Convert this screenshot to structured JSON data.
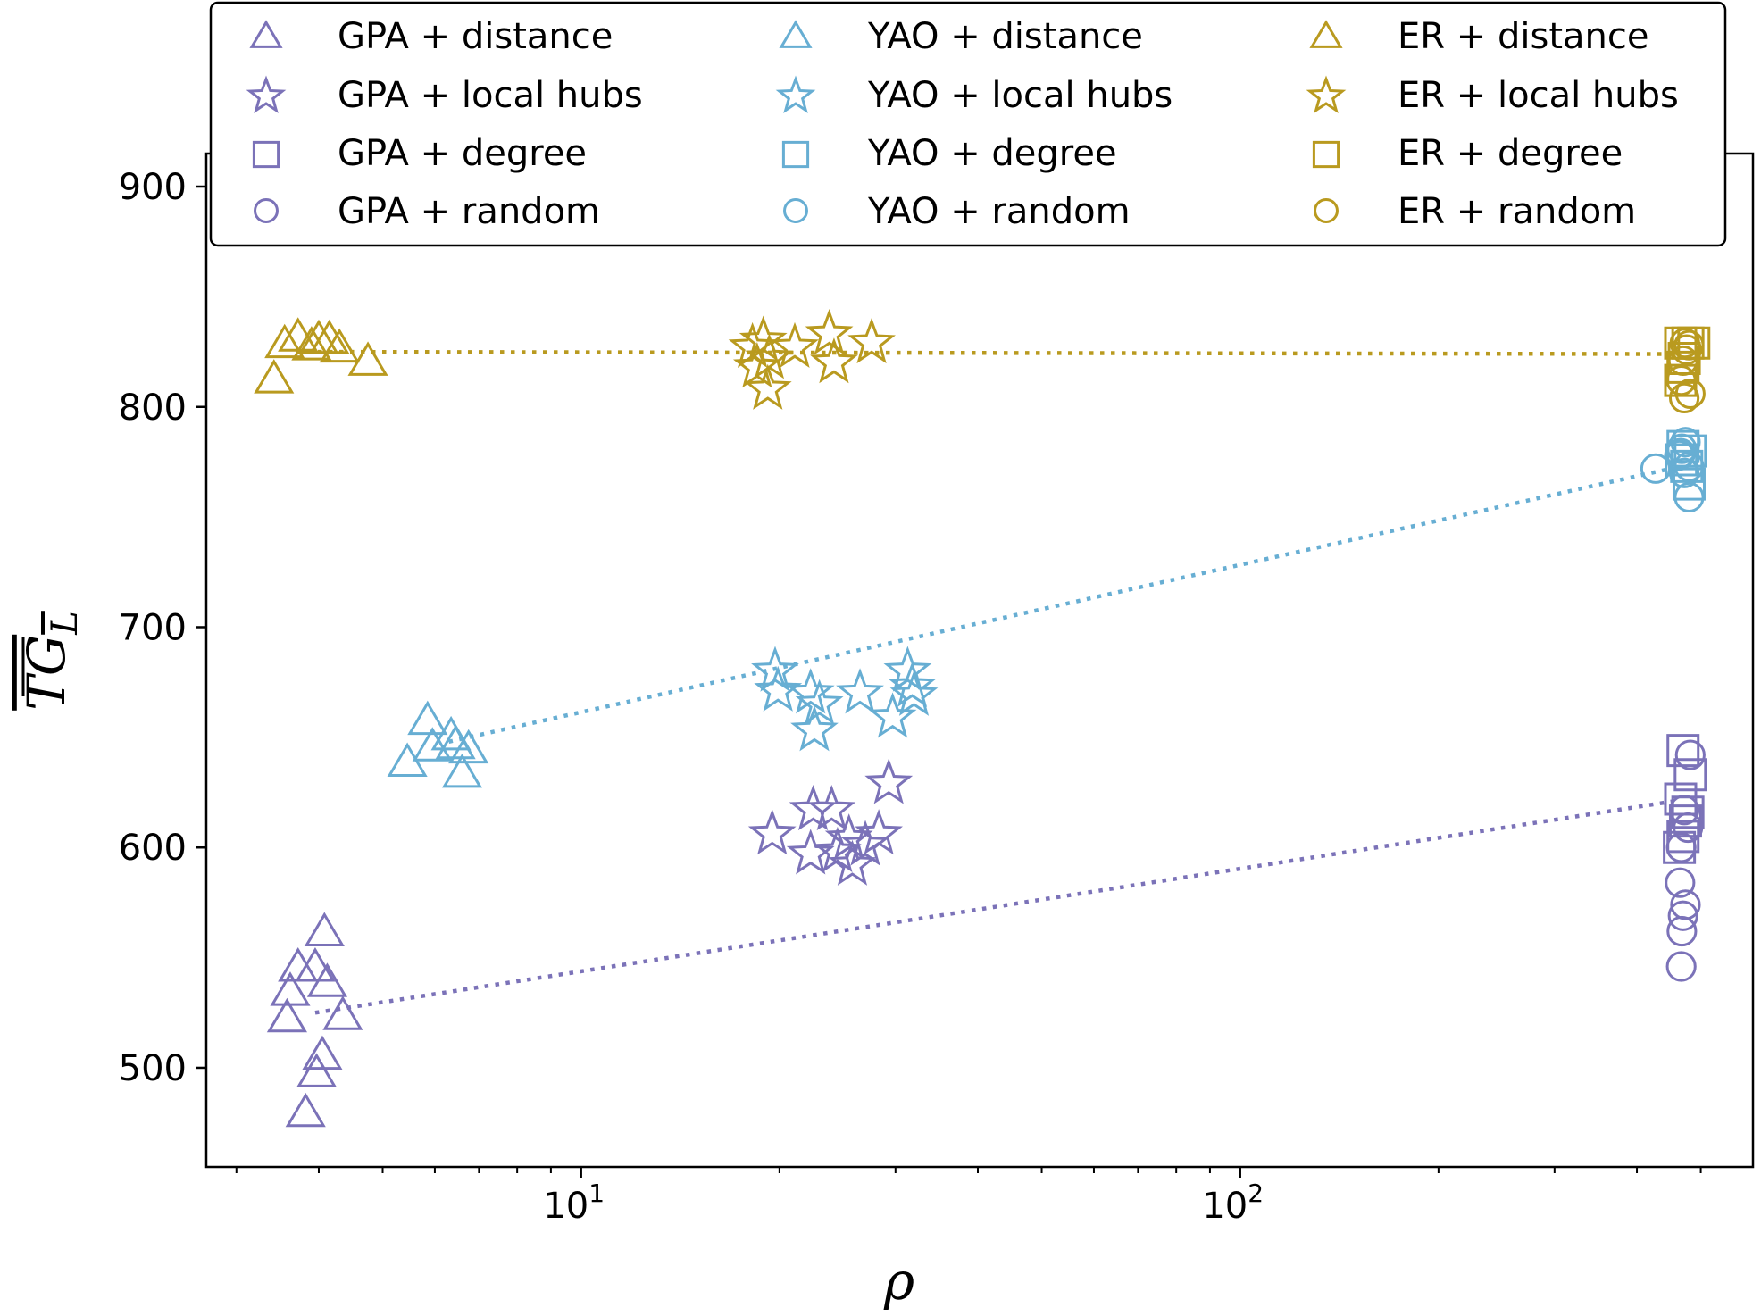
{
  "chart_data": {
    "type": "scatter",
    "title": "",
    "xlabel": "ρ",
    "ylabel": "TG",
    "ylabel_subscript": "L",
    "xscale": "log",
    "xlim": [
      2.7,
      600
    ],
    "ylim": [
      455,
      915
    ],
    "x_ticks": [
      {
        "value": 10,
        "base": "10",
        "exp": "1"
      },
      {
        "value": 100,
        "base": "10",
        "exp": "2"
      }
    ],
    "y_ticks": [
      {
        "value": 500,
        "label": "500"
      },
      {
        "value": 600,
        "label": "600"
      },
      {
        "value": 700,
        "label": "700"
      },
      {
        "value": 800,
        "label": "800"
      },
      {
        "value": 900,
        "label": "900"
      }
    ],
    "grid": false,
    "legend_position": "top-center",
    "colors": {
      "GPA": "#7b72b8",
      "YAO": "#67aed3",
      "ER": "#b99a1f"
    },
    "series": [
      {
        "name": "GPA + distance",
        "group": "GPA",
        "marker": "triangle",
        "points": [
          [
            3.72,
            545
          ],
          [
            3.62,
            534
          ],
          [
            3.58,
            522
          ],
          [
            3.95,
            545
          ],
          [
            4.08,
            561
          ],
          [
            4.12,
            538
          ],
          [
            4.35,
            523
          ],
          [
            4.05,
            505
          ],
          [
            3.97,
            497
          ],
          [
            3.82,
            479
          ]
        ]
      },
      {
        "name": "GPA + local hubs",
        "group": "GPA",
        "marker": "star",
        "points": [
          [
            19.5,
            606
          ],
          [
            22.5,
            617
          ],
          [
            22.3,
            597
          ],
          [
            24.0,
            617
          ],
          [
            25.5,
            604
          ],
          [
            25.8,
            592
          ],
          [
            24.5,
            598
          ],
          [
            27.0,
            601
          ],
          [
            28.3,
            606
          ],
          [
            29.3,
            629
          ]
        ]
      },
      {
        "name": "GPA + degree",
        "group": "GPA",
        "marker": "square",
        "points": [
          [
            470,
            644
          ],
          [
            482,
            633
          ],
          [
            466,
            622
          ],
          [
            474,
            612
          ],
          [
            464,
            600
          ],
          [
            478,
            616
          ],
          [
            470,
            605
          ]
        ]
      },
      {
        "name": "GPA + random",
        "group": "GPA",
        "marker": "circle",
        "points": [
          [
            482,
            642
          ],
          [
            478,
            609
          ],
          [
            472,
            617
          ],
          [
            467,
            600
          ],
          [
            465,
            584
          ],
          [
            474,
            574
          ],
          [
            470,
            569
          ],
          [
            468,
            562
          ],
          [
            467,
            546
          ]
        ]
      },
      {
        "name": "YAO + distance",
        "group": "YAO",
        "marker": "triangle",
        "points": [
          [
            5.85,
            657
          ],
          [
            5.95,
            645
          ],
          [
            5.45,
            638
          ],
          [
            6.35,
            650
          ],
          [
            6.75,
            644
          ],
          [
            6.6,
            633
          ],
          [
            6.45,
            646
          ]
        ]
      },
      {
        "name": "YAO + local hubs",
        "group": "YAO",
        "marker": "star",
        "points": [
          [
            19.7,
            680
          ],
          [
            19.9,
            671
          ],
          [
            22.3,
            670
          ],
          [
            22.6,
            653
          ],
          [
            23.0,
            665
          ],
          [
            26.5,
            670
          ],
          [
            29.7,
            659
          ],
          [
            31.3,
            680
          ],
          [
            31.8,
            673
          ],
          [
            32.0,
            669
          ]
        ]
      },
      {
        "name": "YAO + degree",
        "group": "YAO",
        "marker": "square",
        "points": [
          [
            470,
            782
          ],
          [
            482,
            780
          ],
          [
            476,
            773
          ],
          [
            480,
            765
          ],
          [
            467,
            776
          ]
        ]
      },
      {
        "name": "YAO + random",
        "group": "YAO",
        "marker": "circle",
        "points": [
          [
            427,
            772
          ],
          [
            466,
            779
          ],
          [
            474,
            784
          ],
          [
            468,
            781
          ],
          [
            480,
            773
          ],
          [
            472,
            770
          ],
          [
            480,
            759
          ],
          [
            464,
            778
          ]
        ]
      },
      {
        "name": "ER + distance",
        "group": "ER",
        "marker": "triangle",
        "points": [
          [
            3.42,
            812
          ],
          [
            3.55,
            828
          ],
          [
            3.72,
            831
          ],
          [
            3.9,
            827
          ],
          [
            4.0,
            830
          ],
          [
            4.15,
            830
          ],
          [
            4.3,
            826
          ],
          [
            4.75,
            820
          ]
        ]
      },
      {
        "name": "ER + local hubs",
        "group": "ER",
        "marker": "star",
        "points": [
          [
            18.2,
            827
          ],
          [
            18.5,
            818
          ],
          [
            19.3,
            822
          ],
          [
            19.2,
            808
          ],
          [
            21.1,
            827
          ],
          [
            23.8,
            833
          ],
          [
            24.2,
            820
          ],
          [
            27.6,
            829
          ],
          [
            18.9,
            830
          ]
        ]
      },
      {
        "name": "ER + degree",
        "group": "ER",
        "marker": "square",
        "points": [
          [
            466,
            829
          ],
          [
            478,
            829
          ],
          [
            472,
            822
          ],
          [
            488,
            829
          ],
          [
            470,
            818
          ],
          [
            466,
            812
          ]
        ]
      },
      {
        "name": "ER + random",
        "group": "ER",
        "marker": "circle",
        "points": [
          [
            473,
            829
          ],
          [
            480,
            828
          ],
          [
            476,
            826
          ],
          [
            470,
            821
          ],
          [
            467,
            812
          ],
          [
            472,
            804
          ],
          [
            482,
            806
          ]
        ]
      }
    ],
    "trend_lines": [
      {
        "group": "GPA",
        "x": [
          3.95,
          455
        ],
        "y": [
          525,
          621
        ]
      },
      {
        "group": "YAO",
        "x": [
          6.3,
          450
        ],
        "y": [
          648,
          772
        ]
      },
      {
        "group": "ER",
        "x": [
          3.7,
          465
        ],
        "y": [
          825,
          824
        ]
      }
    ],
    "legend": [
      {
        "series": 0,
        "label": "GPA + distance"
      },
      {
        "series": 1,
        "label": "GPA + local hubs"
      },
      {
        "series": 2,
        "label": "GPA + degree"
      },
      {
        "series": 3,
        "label": "GPA + random"
      },
      {
        "series": 4,
        "label": "YAO + distance"
      },
      {
        "series": 5,
        "label": "YAO + local hubs"
      },
      {
        "series": 6,
        "label": "YAO + degree"
      },
      {
        "series": 7,
        "label": "YAO + random"
      },
      {
        "series": 8,
        "label": "ER + distance"
      },
      {
        "series": 9,
        "label": "ER + local hubs"
      },
      {
        "series": 10,
        "label": "ER + degree"
      },
      {
        "series": 11,
        "label": "ER + random"
      }
    ]
  }
}
